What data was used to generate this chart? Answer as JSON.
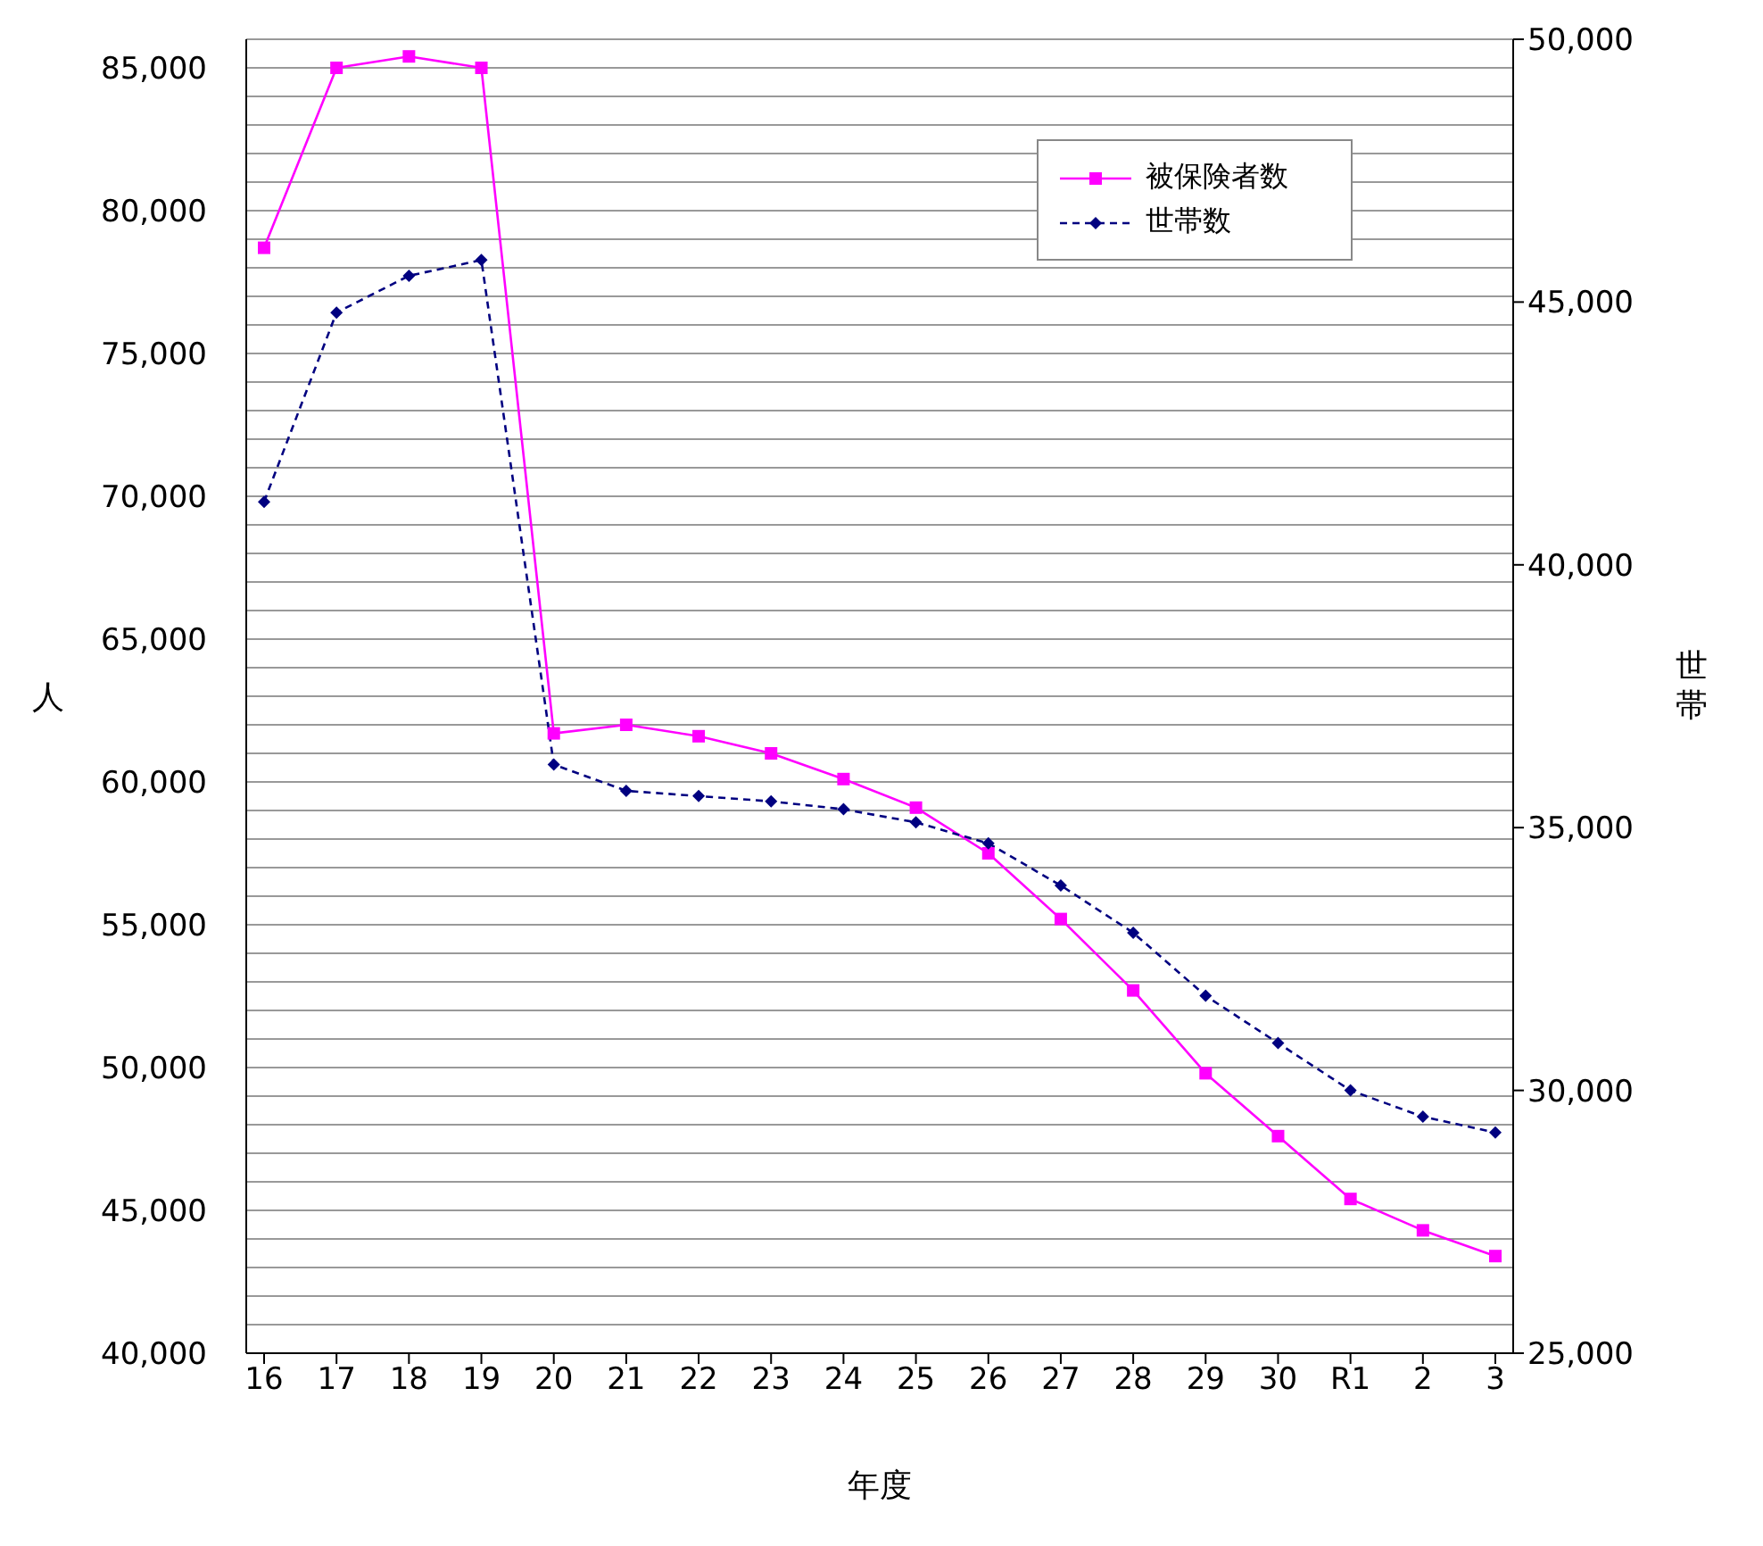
{
  "chart_data": {
    "type": "line",
    "xlabel": "年度",
    "ylabel": "人",
    "y2label": "世帯",
    "categories": [
      "16",
      "17",
      "18",
      "19",
      "20",
      "21",
      "22",
      "23",
      "24",
      "25",
      "26",
      "27",
      "28",
      "29",
      "30",
      "R1",
      "2",
      "3"
    ],
    "series": [
      {
        "name": "被保険者数",
        "color": "#ff00ff",
        "marker": "square",
        "line_style": "solid",
        "values": [
          78700,
          85000,
          85400,
          85000,
          61700,
          62000,
          61600,
          61000,
          60100,
          59100,
          57500,
          55200,
          52700,
          49800,
          47600,
          45400,
          44300,
          43400
        ]
      },
      {
        "name": "世帯数",
        "color": "#000080",
        "marker": "diamond",
        "line_style": "dashed",
        "axis": "y2",
        "values": [
          41200,
          44800,
          45500,
          45800,
          36200,
          35700,
          35600,
          35500,
          35350,
          35100,
          34700,
          33900,
          33000,
          31800,
          30900,
          30000,
          29500,
          29200
        ]
      }
    ],
    "ylim": [
      40000,
      86000
    ],
    "yticks": [
      {
        "value": 40000,
        "label": "40,000"
      },
      {
        "value": 41000,
        "label": null
      },
      {
        "value": 42000,
        "label": null
      },
      {
        "value": 43000,
        "label": null
      },
      {
        "value": 44000,
        "label": null
      },
      {
        "value": 45000,
        "label": "45,000"
      },
      {
        "value": 46000,
        "label": null
      },
      {
        "value": 47000,
        "label": null
      },
      {
        "value": 48000,
        "label": null
      },
      {
        "value": 49000,
        "label": null
      },
      {
        "value": 50000,
        "label": "50,000"
      },
      {
        "value": 51000,
        "label": null
      },
      {
        "value": 52000,
        "label": null
      },
      {
        "value": 53000,
        "label": null
      },
      {
        "value": 54000,
        "label": null
      },
      {
        "value": 55000,
        "label": "55,000"
      },
      {
        "value": 56000,
        "label": null
      },
      {
        "value": 57000,
        "label": null
      },
      {
        "value": 58000,
        "label": null
      },
      {
        "value": 59000,
        "label": null
      },
      {
        "value": 60000,
        "label": "60,000"
      },
      {
        "value": 61000,
        "label": null
      },
      {
        "value": 62000,
        "label": null
      },
      {
        "value": 63000,
        "label": null
      },
      {
        "value": 64000,
        "label": null
      },
      {
        "value": 65000,
        "label": "65,000"
      },
      {
        "value": 66000,
        "label": null
      },
      {
        "value": 67000,
        "label": null
      },
      {
        "value": 68000,
        "label": null
      },
      {
        "value": 69000,
        "label": null
      },
      {
        "value": 70000,
        "label": "70,000"
      },
      {
        "value": 71000,
        "label": null
      },
      {
        "value": 72000,
        "label": null
      },
      {
        "value": 73000,
        "label": null
      },
      {
        "value": 74000,
        "label": null
      },
      {
        "value": 75000,
        "label": "75,000"
      },
      {
        "value": 76000,
        "label": null
      },
      {
        "value": 77000,
        "label": null
      },
      {
        "value": 78000,
        "label": null
      },
      {
        "value": 79000,
        "label": null
      },
      {
        "value": 80000,
        "label": "80,000"
      },
      {
        "value": 81000,
        "label": null
      },
      {
        "value": 82000,
        "label": null
      },
      {
        "value": 83000,
        "label": null
      },
      {
        "value": 84000,
        "label": null
      },
      {
        "value": 85000,
        "label": "85,000"
      },
      {
        "value": 86000,
        "label": null
      }
    ],
    "y2lim": [
      25000,
      50000
    ],
    "y2ticks": [
      {
        "value": 25000,
        "label": "25,000"
      },
      {
        "value": 30000,
        "label": "30,000"
      },
      {
        "value": 35000,
        "label": "35,000"
      },
      {
        "value": 40000,
        "label": "40,000"
      },
      {
        "value": 45000,
        "label": "45,000"
      },
      {
        "value": 50000,
        "label": "50,000"
      }
    ],
    "grid": "y",
    "legend": "top right"
  }
}
